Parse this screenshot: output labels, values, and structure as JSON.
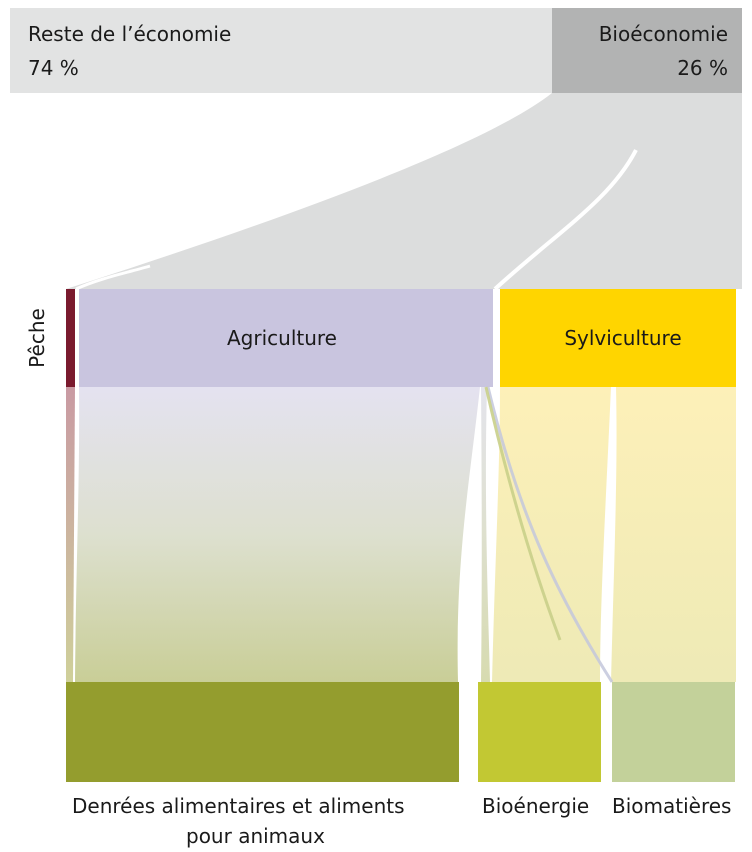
{
  "header": {
    "rest": {
      "label": "Reste de l’économie",
      "value": "74 %"
    },
    "bio": {
      "label": "Bioéconomie",
      "value": "26 %"
    }
  },
  "sectors": {
    "fishing": "Pêche",
    "agriculture": "Agriculture",
    "forestry": "Sylviculture"
  },
  "outputs": {
    "food_line1": "Denrées alimentaires et aliments",
    "food_line2": "pour animaux",
    "bioenergy": "Bioénergie",
    "biomaterials": "Biomatières"
  },
  "colors": {
    "rest": "#e2e3e3",
    "bio": "#b2b3b3",
    "band": "#dcdddd",
    "fishing": "#7a1a2e",
    "agriculture": "#c9c5df",
    "forestry": "#ffd500",
    "food": "#949d2e",
    "bioenergy": "#c2c833",
    "biomaterials": "#c3d19a"
  }
}
